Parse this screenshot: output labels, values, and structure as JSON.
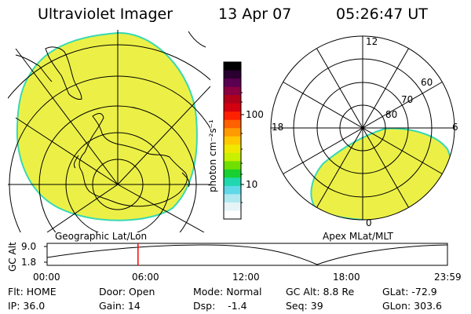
{
  "header": {
    "title": "Ultraviolet Imager",
    "date": "13 Apr 07",
    "time": "05:26:47 UT"
  },
  "left_panel": {
    "caption": "Geographic Lat/Lon"
  },
  "right_panel": {
    "caption": "Apex MLat/MLT",
    "mlt_labels": [
      "12",
      "18",
      "6",
      "0"
    ],
    "mlat_labels": [
      "60",
      "70",
      "80"
    ]
  },
  "colorbar": {
    "unit_label": "photon cm⁻²s⁻¹",
    "ticks": [
      "100",
      "10"
    ],
    "colors": [
      "#000000",
      "#2a0030",
      "#5a0050",
      "#8a0040",
      "#b0001a",
      "#d20010",
      "#ff2000",
      "#ff6000",
      "#ff9a00",
      "#ffc800",
      "#f0e800",
      "#c8f000",
      "#70e000",
      "#18d030",
      "#20d8b0",
      "#60d8e8",
      "#b0e8f0",
      "#e6f4f6",
      "#ffffff"
    ]
  },
  "timeline": {
    "y_axis_label": "GC Alt",
    "y_ticks": [
      "9.0",
      "1.8"
    ],
    "x_ticks": [
      "00:00",
      "06:00",
      "12:00",
      "18:00",
      "23:59"
    ],
    "marker_time": "05:26:47"
  },
  "footer": {
    "flt": "Flt: HOME",
    "ip": "IP: 36.0",
    "door": "Door: Open",
    "gain": "Gain: 14",
    "mode": "Mode: Normal",
    "dsp": "Dsp:    -1.4",
    "gc_alt": "GC Alt: 8.8 Re",
    "seq": "Seq: 39",
    "glat": "GLat: -72.9",
    "glon": "GLon: 303.6"
  },
  "colors": {
    "emission_fill": "#ecf046",
    "emission_edge": "#38d8b4",
    "marker": "#ff0000",
    "ink": "#000000"
  }
}
